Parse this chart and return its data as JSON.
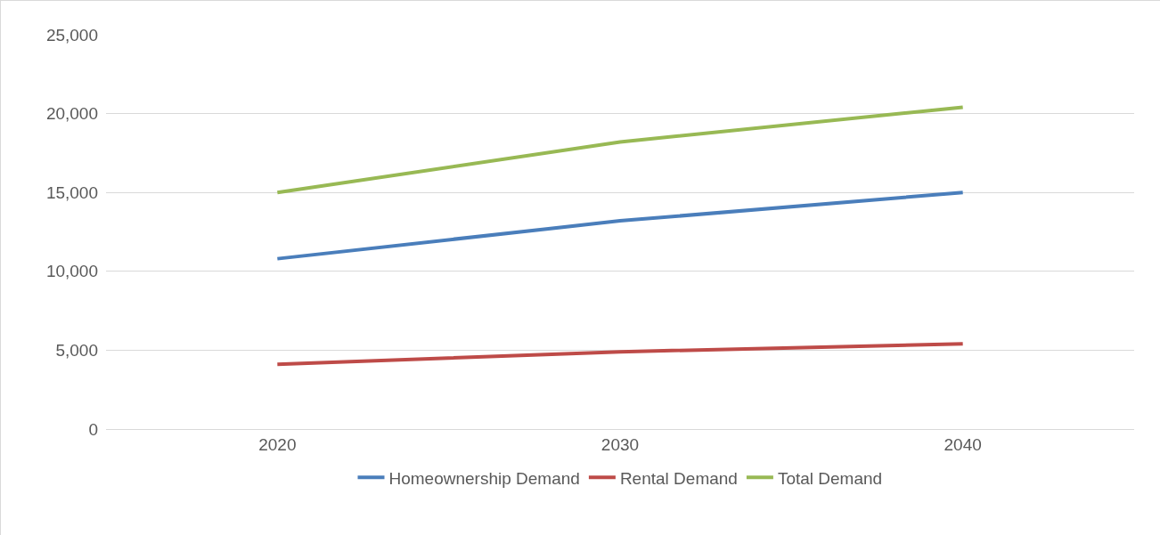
{
  "chart_data": {
    "type": "line",
    "categories": [
      "2020",
      "2030",
      "2040"
    ],
    "series": [
      {
        "name": "Homeownership Demand",
        "color": "#4a7ebb",
        "values": [
          10800,
          13200,
          15000
        ]
      },
      {
        "name": "Rental Demand",
        "color": "#be4b48",
        "values": [
          4100,
          4900,
          5400
        ]
      },
      {
        "name": "Total Demand",
        "color": "#98b954",
        "values": [
          15000,
          18200,
          20400
        ]
      }
    ],
    "ylim": [
      0,
      25000
    ],
    "yticks": [
      {
        "value": 0,
        "label": "0"
      },
      {
        "value": 5000,
        "label": "5,000"
      },
      {
        "value": 10000,
        "label": "10,000"
      },
      {
        "value": 15000,
        "label": "15,000"
      },
      {
        "value": 20000,
        "label": "20,000"
      },
      {
        "value": 25000,
        "label": "25,000"
      }
    ],
    "grid": "y",
    "legend": "bottom",
    "marker": "none",
    "line_style": "solid"
  }
}
